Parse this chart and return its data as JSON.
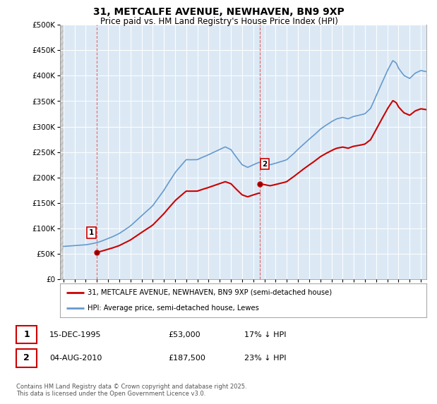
{
  "title": "31, METCALFE AVENUE, NEWHAVEN, BN9 9XP",
  "subtitle": "Price paid vs. HM Land Registry's House Price Index (HPI)",
  "ytick_values": [
    0,
    50000,
    100000,
    150000,
    200000,
    250000,
    300000,
    350000,
    400000,
    450000,
    500000
  ],
  "ylim": [
    0,
    500000
  ],
  "xlim_start": 1992.7,
  "xlim_end": 2025.5,
  "purchase1_year": 1995.96,
  "purchase1_price": 53000,
  "purchase1_label": "1",
  "purchase2_year": 2010.58,
  "purchase2_price": 187500,
  "purchase2_label": "2",
  "annotation1_date": "15-DEC-1995",
  "annotation1_price": "£53,000",
  "annotation1_hpi": "17% ↓ HPI",
  "annotation2_date": "04-AUG-2010",
  "annotation2_price": "£187,500",
  "annotation2_hpi": "23% ↓ HPI",
  "legend_label1": "31, METCALFE AVENUE, NEWHAVEN, BN9 9XP (semi-detached house)",
  "legend_label2": "HPI: Average price, semi-detached house, Lewes",
  "footer": "Contains HM Land Registry data © Crown copyright and database right 2025.\nThis data is licensed under the Open Government Licence v3.0.",
  "line_color_property": "#cc0000",
  "line_color_hpi": "#6699cc",
  "background_color": "#ffffff",
  "plot_bg_color": "#dce9f5",
  "grid_color": "#ffffff"
}
